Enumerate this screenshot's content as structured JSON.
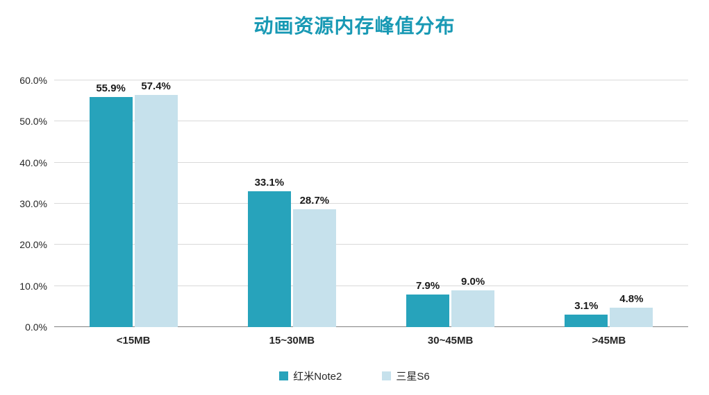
{
  "chart_data": {
    "type": "bar",
    "title": "动画资源内存峰值分布",
    "categories": [
      "<15MB",
      "15~30MB",
      "30~45MB",
      ">45MB"
    ],
    "series": [
      {
        "name": "红米Note2",
        "color": "#27A3BB",
        "values": [
          55.9,
          33.1,
          7.9,
          3.1
        ],
        "labels": [
          "55.9%",
          "33.1%",
          "7.9%",
          "3.1%"
        ]
      },
      {
        "name": "三星S6",
        "color": "#C6E1EC",
        "values": [
          57.4,
          28.7,
          9.0,
          4.8
        ],
        "labels": [
          "57.4%",
          "28.7%",
          "9.0%",
          "4.8%"
        ]
      }
    ],
    "xlabel": "",
    "ylabel": "",
    "ylim": [
      0,
      60
    ],
    "ytick_step": 10,
    "ytick_labels": [
      "0.0%",
      "10.0%",
      "20.0%",
      "30.0%",
      "40.0%",
      "50.0%",
      "60.0%"
    ],
    "grid": "horizontal",
    "legend_position": "bottom"
  },
  "colors": {
    "title": "#1899B4",
    "gridline": "#D9D9D9",
    "baseline": "#808080",
    "text": "#262626"
  }
}
